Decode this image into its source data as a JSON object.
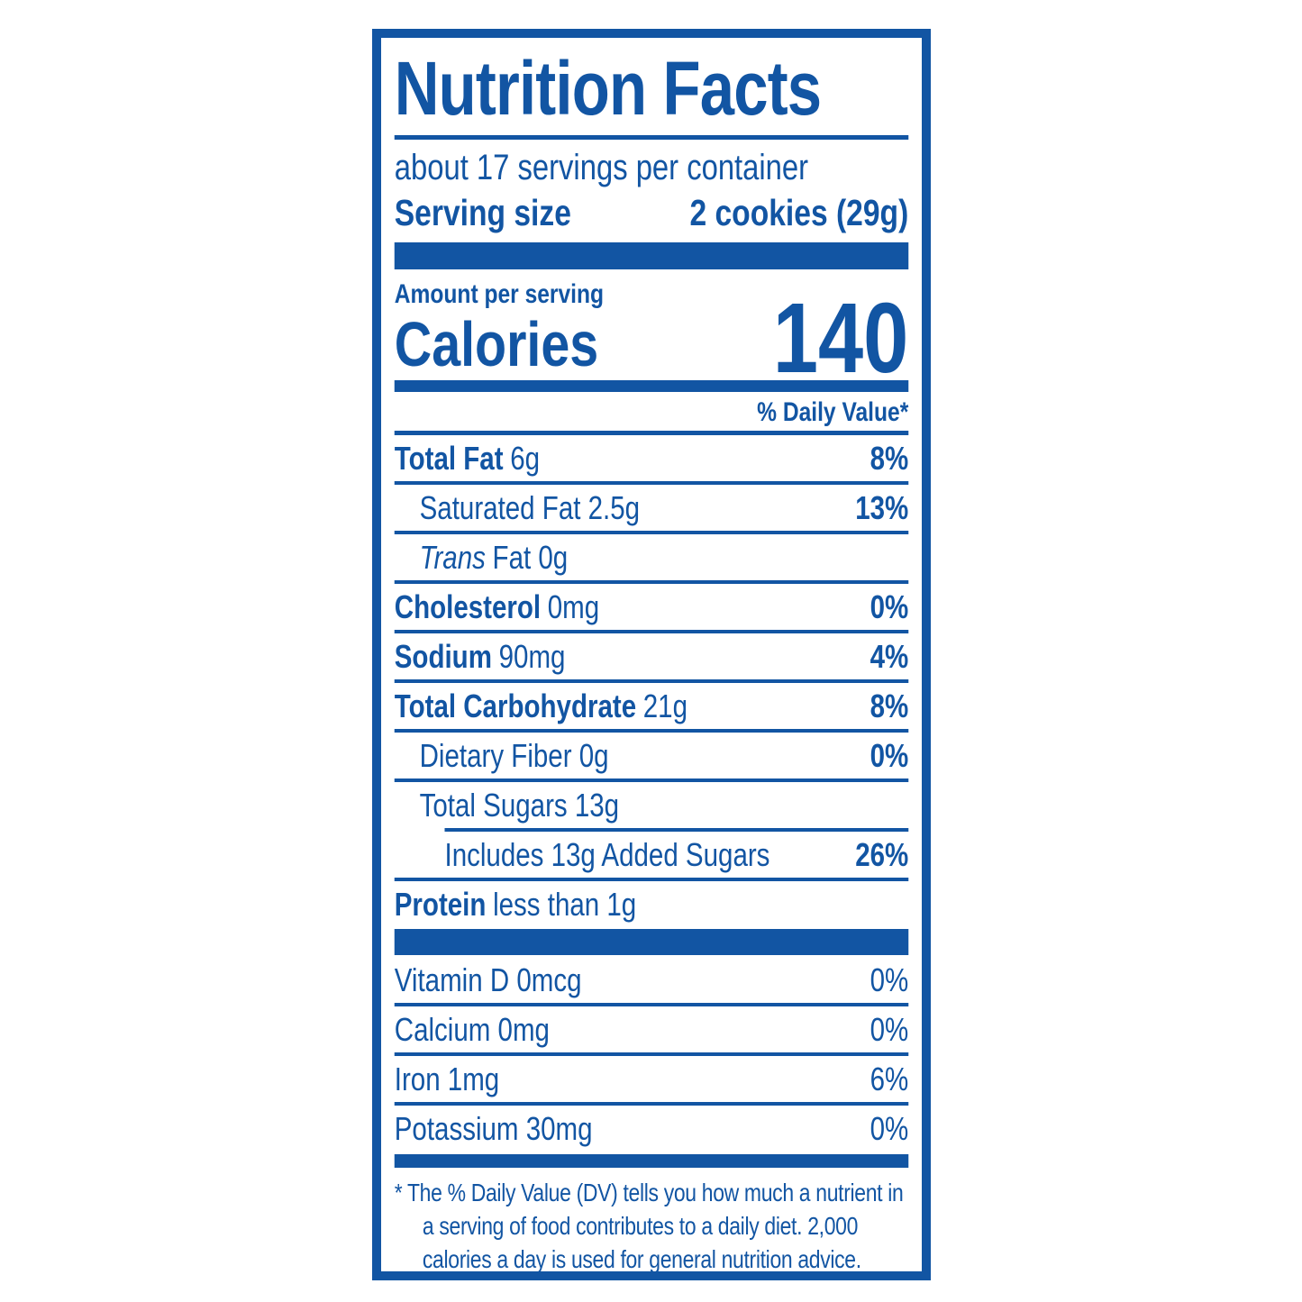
{
  "colors": {
    "brand_blue": "#1255A3",
    "background": "#FFFFFF"
  },
  "label": {
    "title": "Nutrition Facts",
    "servings_per_container": "about 17 servings per container",
    "serving_size": {
      "label": "Serving size",
      "value": "2 cookies (29g)"
    },
    "amount_per_serving": "Amount per serving",
    "calories": {
      "label": "Calories",
      "value": "140"
    },
    "daily_value_header": "% Daily Value*",
    "nutrient_rows": [
      {
        "bold": "Total Fat",
        "rest": "6g",
        "dv": "8%"
      },
      {
        "rest": "Saturated Fat 2.5g",
        "dv": "13%"
      },
      {
        "italic": "Trans",
        "rest": "Fat 0g"
      },
      {
        "bold": "Cholesterol",
        "rest": "0mg",
        "dv": "0%"
      },
      {
        "bold": "Sodium",
        "rest": "90mg",
        "dv": "4%"
      },
      {
        "bold": "Total Carbohydrate",
        "rest": "21g",
        "dv": "8%"
      },
      {
        "rest": "Dietary Fiber 0g",
        "dv": "0%"
      },
      {
        "rest": "Total Sugars 13g"
      },
      {
        "rest": "Includes 13g Added Sugars",
        "dv": "26%"
      },
      {
        "bold": "Protein",
        "rest": "less than 1g"
      }
    ],
    "vitamin_rows": [
      {
        "text": "Vitamin D 0mcg",
        "dv": "0%"
      },
      {
        "text": "Calcium 0mg",
        "dv": "0%"
      },
      {
        "text": "Iron 1mg",
        "dv": "6%"
      },
      {
        "text": "Potassium 30mg",
        "dv": "0%"
      }
    ],
    "footnote": "* The % Daily Value (DV) tells you how much a nutrient in a serving of food contributes to a daily diet. 2,000 calories a day is used for general nutrition advice."
  }
}
